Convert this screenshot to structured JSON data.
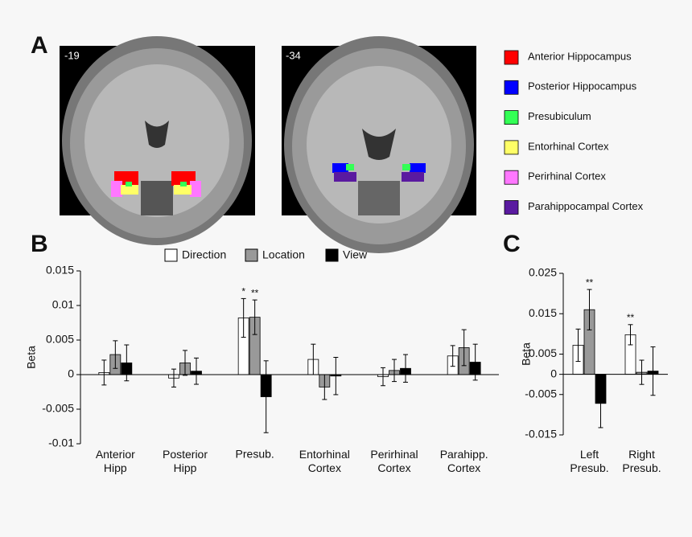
{
  "panel_labels": [
    "A",
    "B",
    "C"
  ],
  "brain_slices": [
    "-19",
    "-34"
  ],
  "roi_legend": [
    {
      "label": "Anterior Hippocampus",
      "color": "#ff0000"
    },
    {
      "label": "Posterior Hippocampus",
      "color": "#0000ff"
    },
    {
      "label": "Presubiculum",
      "color": "#33ff55"
    },
    {
      "label": "Entorhinal Cortex",
      "color": "#ffff66"
    },
    {
      "label": "Perirhinal Cortex",
      "color": "#ff77ff"
    },
    {
      "label": "Parahippocampal Cortex",
      "color": "#5a1aa0"
    }
  ],
  "chart_data": [
    {
      "type": "bar",
      "y_label": "Beta",
      "legend": true,
      "categories": [
        "Anterior Hipp",
        "Posterior Hipp",
        "Presub.",
        "Entorhinal Cortex",
        "Perirhinal Cortex",
        "Parahipp. Cortex"
      ],
      "series": [
        {
          "name": "Direction",
          "color": "#ffffff",
          "values": [
            0.0003,
            -0.0005,
            0.0082,
            0.0022,
            -0.0003,
            0.0027
          ],
          "errors": [
            0.0018,
            0.0013,
            0.0028,
            0.0022,
            0.0013,
            0.0015
          ],
          "annotations": [
            null,
            null,
            "*",
            null,
            null,
            null
          ]
        },
        {
          "name": "Location",
          "color": "#999999",
          "values": [
            0.0029,
            0.0017,
            0.0083,
            -0.0018,
            0.0006,
            0.0039
          ],
          "errors": [
            0.002,
            0.0018,
            0.0025,
            0.0018,
            0.0016,
            0.0026
          ],
          "annotations": [
            null,
            null,
            "**",
            null,
            null,
            null
          ]
        },
        {
          "name": "View",
          "color": "#000000",
          "values": [
            0.0017,
            0.0005,
            -0.0032,
            -0.0002,
            0.0009,
            0.0018
          ],
          "errors": [
            0.0026,
            0.0019,
            0.0052,
            0.0027,
            0.002,
            0.0026
          ],
          "annotations": [
            null,
            null,
            null,
            null,
            null,
            null
          ]
        }
      ],
      "ylim": [
        -0.01,
        0.015
      ],
      "yticks": [
        0.015,
        0.01,
        0.005,
        0,
        -0.005,
        -0.01
      ]
    },
    {
      "type": "bar",
      "y_label": "Beta",
      "legend": false,
      "categories": [
        "Left Presub.",
        "Right Presub."
      ],
      "series": [
        {
          "name": "Direction",
          "color": "#ffffff",
          "values": [
            0.0072,
            0.0098
          ],
          "errors": [
            0.004,
            0.0025
          ],
          "annotations": [
            null,
            "**"
          ]
        },
        {
          "name": "Location",
          "color": "#999999",
          "values": [
            0.016,
            0.0005
          ],
          "errors": [
            0.005,
            0.003
          ],
          "annotations": [
            "**",
            null
          ]
        },
        {
          "name": "View",
          "color": "#000000",
          "values": [
            -0.0072,
            0.0008
          ],
          "errors": [
            0.006,
            0.006
          ],
          "annotations": [
            null,
            null
          ]
        }
      ],
      "ylim": [
        -0.015,
        0.025
      ],
      "yticks": [
        0.025,
        0.015,
        0.005,
        0,
        -0.005,
        -0.015
      ]
    }
  ]
}
